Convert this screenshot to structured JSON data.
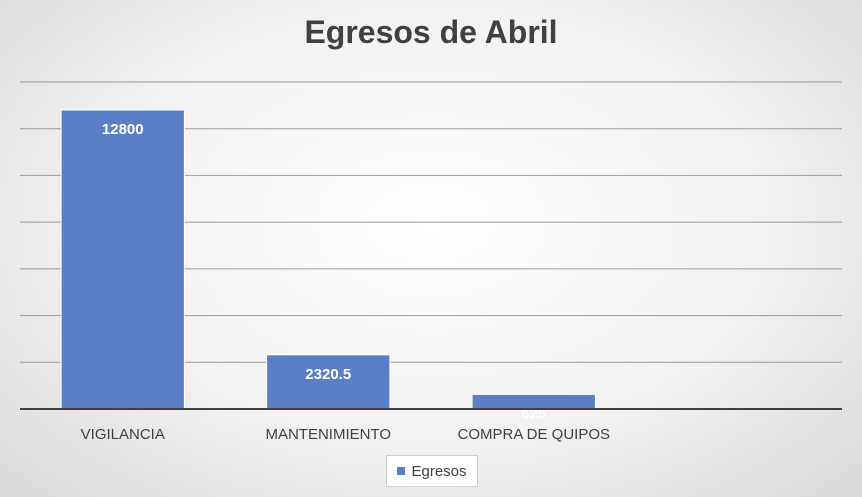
{
  "chart_data": {
    "type": "bar",
    "title": "Egresos de Abril",
    "categories": [
      "VIGILANCIA",
      "MANTENIMIENTO",
      "COMPRA DE QUIPOS",
      ""
    ],
    "series": [
      {
        "name": "Egresos",
        "values": [
          12800,
          2320.5,
          625,
          null
        ],
        "labels": [
          "12800",
          "2320.5",
          "625",
          ""
        ]
      }
    ],
    "ylim": [
      0,
      14000
    ],
    "grid": true,
    "y_axis_labels_visible": false,
    "legend_position": "bottom",
    "colors": {
      "bar": "#5b7fc7",
      "bar_edge": "#ffffff",
      "grid": "#9a9a9a",
      "axis": "#404040",
      "data_label": "#ffffff"
    }
  }
}
